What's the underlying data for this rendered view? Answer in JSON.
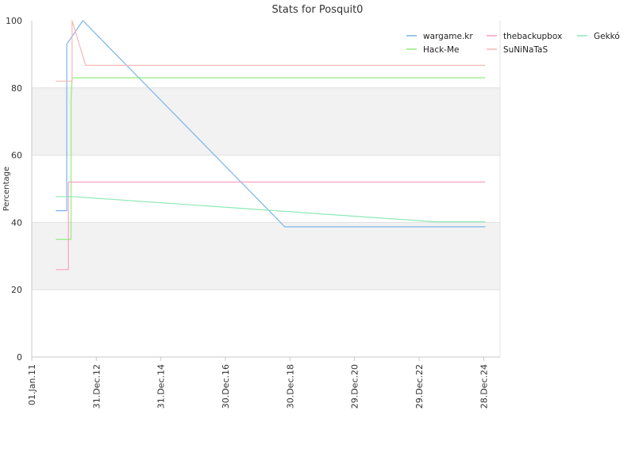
{
  "chart_data": {
    "type": "line",
    "title": "Stats for Posquit0",
    "xlabel": "",
    "ylabel": "Percentage",
    "x_tick_labels": [
      "01.Jan.11",
      "31.Dec.12",
      "31.Dec.14",
      "30.Dec.16",
      "30.Dec.18",
      "29.Dec.20",
      "29.Dec.22",
      "28.Dec.24"
    ],
    "x_tick_dates": [
      "2011-01-01",
      "2012-12-31",
      "2014-12-31",
      "2016-12-30",
      "2018-12-30",
      "2020-12-29",
      "2022-12-29",
      "2024-12-28"
    ],
    "x_range": [
      "2011-01-01",
      "2025-07-01"
    ],
    "ylim": [
      0,
      100
    ],
    "y_ticks": [
      0,
      20,
      40,
      60,
      80,
      100
    ],
    "grid": true,
    "banded_background": true,
    "legend_position": "top-right",
    "series": [
      {
        "name": "wargame.kr",
        "color": "#7cb5ec",
        "points": [
          [
            "2011-10-01",
            43.5
          ],
          [
            "2012-02-01",
            43.5
          ],
          [
            "2012-02-01",
            93
          ],
          [
            "2012-08-01",
            100
          ],
          [
            "2018-11-01",
            38.7
          ],
          [
            "2025-01-15",
            38.7
          ]
        ]
      },
      {
        "name": "Hack-Me",
        "color": "#90ed7d",
        "points": [
          [
            "2011-10-01",
            35
          ],
          [
            "2012-03-20",
            35
          ],
          [
            "2012-03-20",
            76
          ],
          [
            "2012-04-01",
            83
          ],
          [
            "2025-01-15",
            83
          ]
        ]
      },
      {
        "name": "thebackupbox",
        "color": "#f7a1c4",
        "points": [
          [
            "2011-10-01",
            26
          ],
          [
            "2012-02-20",
            26
          ],
          [
            "2012-02-20",
            52
          ],
          [
            "2025-01-15",
            52
          ]
        ]
      },
      {
        "name": "SuNiNaTaS",
        "color": "#f7b7b7",
        "points": [
          [
            "2011-10-01",
            82
          ],
          [
            "2012-04-01",
            82
          ],
          [
            "2012-04-01",
            100
          ],
          [
            "2012-09-01",
            86.7
          ],
          [
            "2025-01-15",
            86.7
          ]
        ]
      },
      {
        "name": "Gekkó",
        "color": "#8ee8b8",
        "points": [
          [
            "2011-10-01",
            47.7
          ],
          [
            "2012-04-01",
            47.7
          ],
          [
            "2023-07-01",
            40.2
          ],
          [
            "2025-01-15",
            40.2
          ]
        ]
      }
    ]
  }
}
